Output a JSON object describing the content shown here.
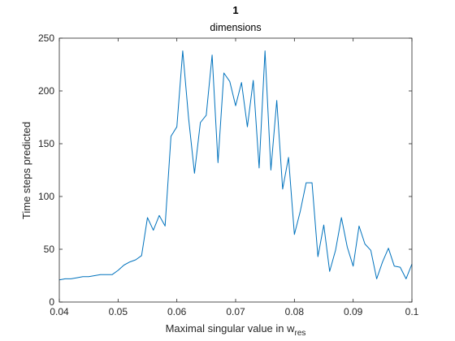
{
  "chart_data": {
    "type": "line",
    "title": "1",
    "subtitle": "dimensions",
    "xlabel": "Maximal singular value in w",
    "xlabel_subscript": "res",
    "ylabel": "Time steps predicted",
    "xlim": [
      0.04,
      0.1
    ],
    "ylim": [
      0,
      250
    ],
    "xticks": [
      "0.04",
      "0.05",
      "0.06",
      "0.07",
      "0.08",
      "0.09",
      "0.1"
    ],
    "yticks": [
      "0",
      "50",
      "100",
      "150",
      "200",
      "250"
    ],
    "grid": false,
    "line_color": "#0072BD",
    "series": [
      {
        "x": [
          0.04,
          0.041,
          0.042,
          0.043,
          0.044,
          0.045,
          0.046,
          0.047,
          0.048,
          0.049,
          0.05,
          0.051,
          0.052,
          0.053,
          0.054,
          0.055,
          0.056,
          0.057,
          0.058,
          0.059,
          0.06,
          0.061,
          0.062,
          0.063,
          0.064,
          0.065,
          0.066,
          0.067,
          0.068,
          0.069,
          0.07,
          0.071,
          0.072,
          0.073,
          0.074,
          0.075,
          0.076,
          0.077,
          0.078,
          0.079,
          0.08,
          0.081,
          0.082,
          0.083,
          0.084,
          0.085,
          0.086,
          0.087,
          0.088,
          0.089,
          0.09,
          0.091,
          0.092,
          0.093,
          0.094,
          0.095,
          0.096,
          0.097,
          0.098,
          0.099,
          0.1
        ],
        "values": [
          21,
          22,
          22,
          23,
          24,
          24,
          25,
          26,
          26,
          26,
          30,
          35,
          38,
          40,
          44,
          80,
          68,
          82,
          72,
          157,
          166,
          238,
          174,
          122,
          170,
          177,
          234,
          132,
          217,
          209,
          186,
          208,
          166,
          210,
          127,
          238,
          125,
          191,
          107,
          137,
          64,
          86,
          113,
          113,
          43,
          73,
          29,
          49,
          80,
          52,
          34,
          72,
          55,
          49,
          22,
          38,
          51,
          34,
          33,
          22,
          36
        ]
      }
    ]
  }
}
